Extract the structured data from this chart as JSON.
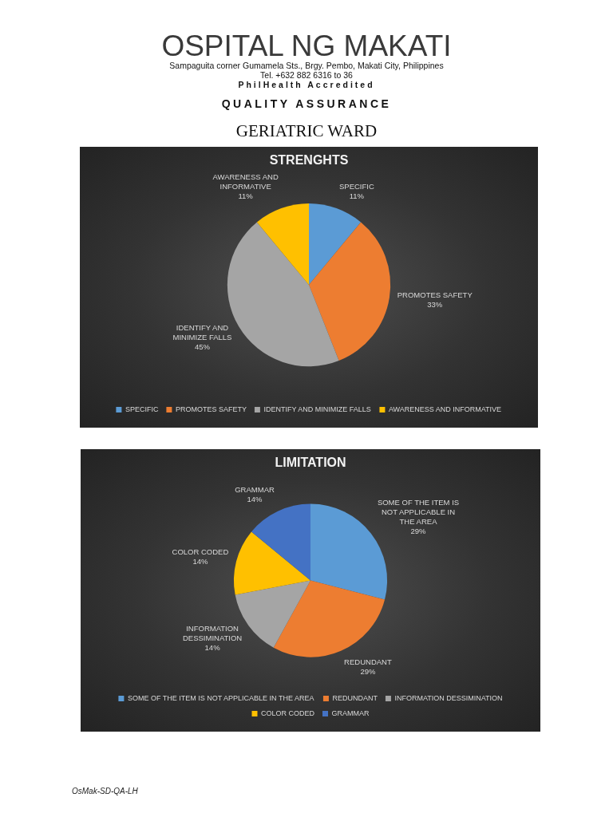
{
  "chart_data": [
    {
      "type": "pie",
      "title": "STRENGHTS",
      "categories": [
        "SPECIFIC",
        "PROMOTES SAFETY",
        "IDENTIFY AND MINIMIZE FALLS",
        "AWARENESS AND INFORMATIVE"
      ],
      "values": [
        11,
        33,
        45,
        11
      ],
      "colors": [
        "#5b9bd5",
        "#ed7d31",
        "#a5a5a5",
        "#ffc000"
      ],
      "value_labels": [
        "11%",
        "33%",
        "45%",
        "11%"
      ],
      "legend": "bottom",
      "annotations": [
        "OSPITAL NG MAKATI",
        "Sampaguita corner Gumamela Sts., Brgy. Pembo, Makati City, Philippines",
        "Tel. +632 882 6316 to 36",
        "PhilHealth Accredited",
        "QUALITY ASSURANCE",
        "GERIATRIC WARD"
      ]
    },
    {
      "type": "pie",
      "title": "LIMITATION",
      "categories": [
        "SOME OF THE ITEM IS NOT APPLICABLE IN THE AREA",
        "REDUNDANT",
        "INFORMATION DESSIMINATION",
        "COLOR CODED",
        "GRAMMAR"
      ],
      "values": [
        29,
        29,
        14,
        14,
        14
      ],
      "colors": [
        "#5b9bd5",
        "#ed7d31",
        "#a5a5a5",
        "#ffc000",
        "#4472c4"
      ],
      "value_labels": [
        "29%",
        "29%",
        "14%",
        "14%",
        "14%"
      ],
      "legend": "bottom",
      "annotations": [
        "OsMak-SD-QA-LH"
      ]
    }
  ]
}
